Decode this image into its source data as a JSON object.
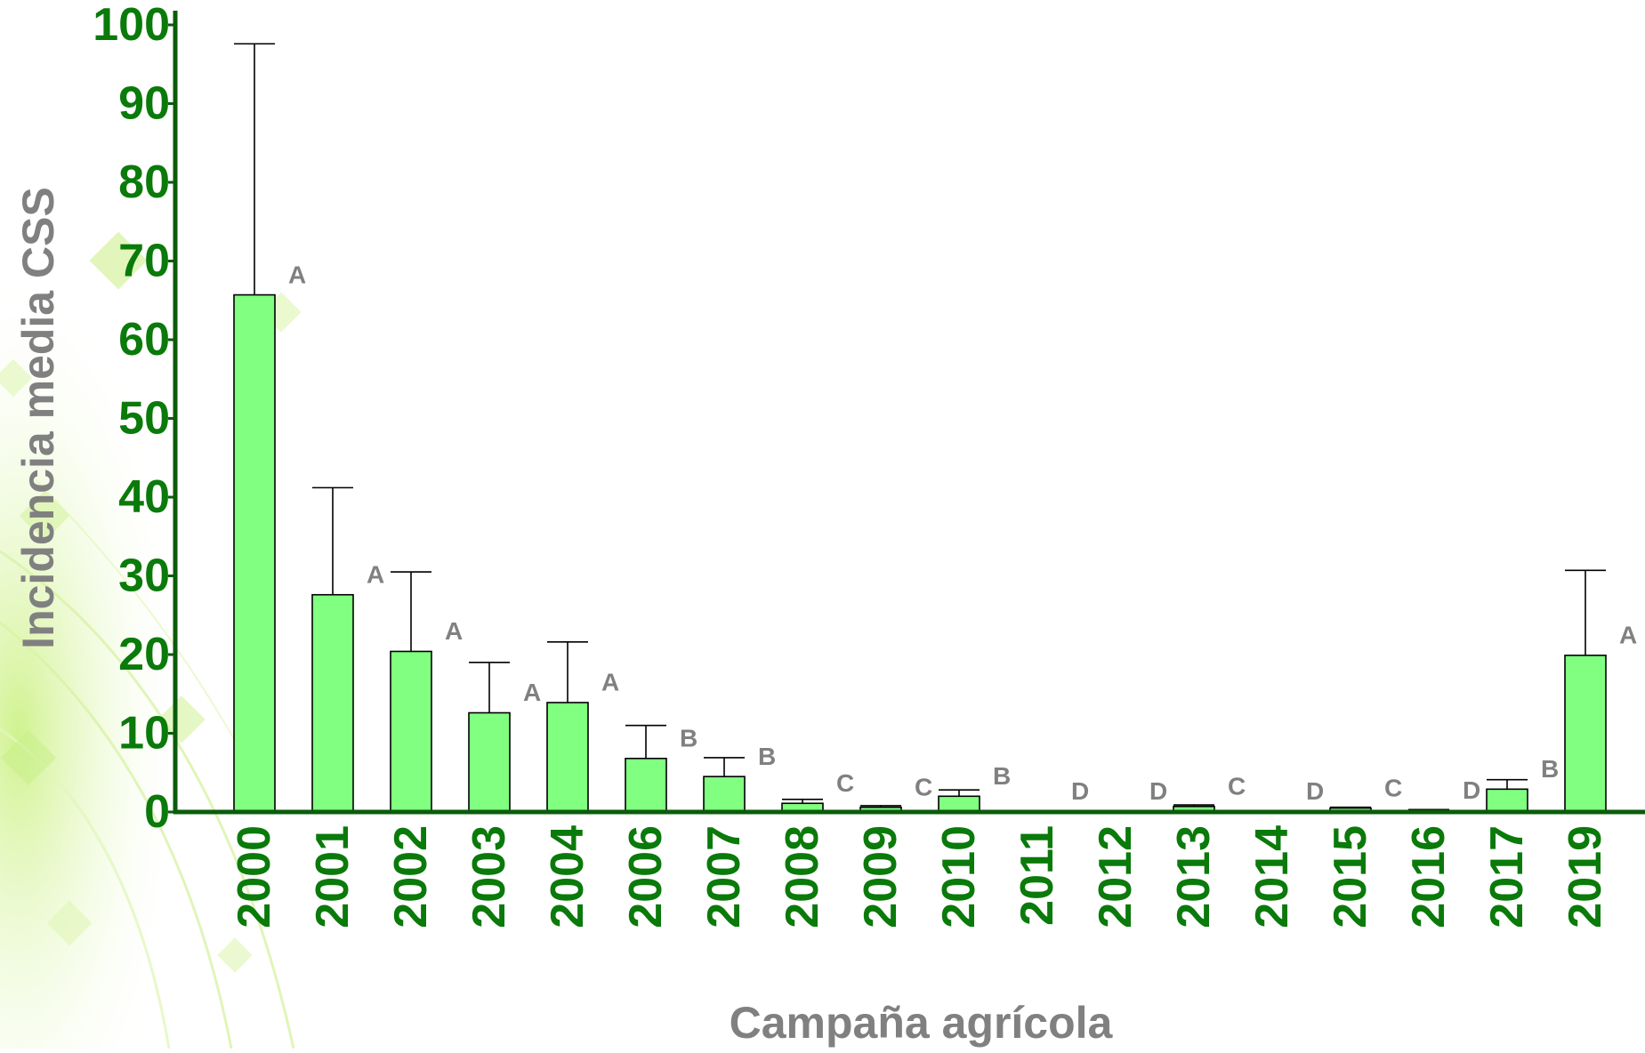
{
  "chart_data": {
    "type": "bar",
    "title": "",
    "xlabel": "Campaña agrícola",
    "ylabel": "Incidencia media CSS",
    "ylim": [
      0,
      100
    ],
    "yticks": [
      "0",
      "10",
      "20",
      "30",
      "40",
      "50",
      "60",
      "70",
      "80",
      "90",
      "100"
    ],
    "grid": false,
    "legend": "none",
    "categories": [
      "2000",
      "2001",
      "2002",
      "2003",
      "2004",
      "2006",
      "2007",
      "2008",
      "2009",
      "2010",
      "2011",
      "2012",
      "2013",
      "2014",
      "2015",
      "2016",
      "2017",
      "2019"
    ],
    "values": [
      65.7,
      27.6,
      20.4,
      12.6,
      13.9,
      6.8,
      4.5,
      1.1,
      0.6,
      2.0,
      0.1,
      0.1,
      0.7,
      0.1,
      0.5,
      0.2,
      2.9,
      19.9
    ],
    "error_upper": [
      97.6,
      41.2,
      30.5,
      19.0,
      21.6,
      11.0,
      6.9,
      1.6,
      0.8,
      2.8,
      0.15,
      0.15,
      0.9,
      0.15,
      0.6,
      0.3,
      4.1,
      30.7
    ],
    "group_letters": [
      "A",
      "A",
      "A",
      "A",
      "A",
      "B",
      "B",
      "C",
      "C",
      "B",
      "D",
      "D",
      "C",
      "D",
      "C",
      "D",
      "B",
      "A"
    ],
    "colors": {
      "bar_fill": "#80ff80",
      "bar_stroke": "#000000",
      "axis": "#0a5c0a",
      "tick_text": "#0a7a0a",
      "axis_title": "#808080",
      "letters": "#808080"
    }
  }
}
